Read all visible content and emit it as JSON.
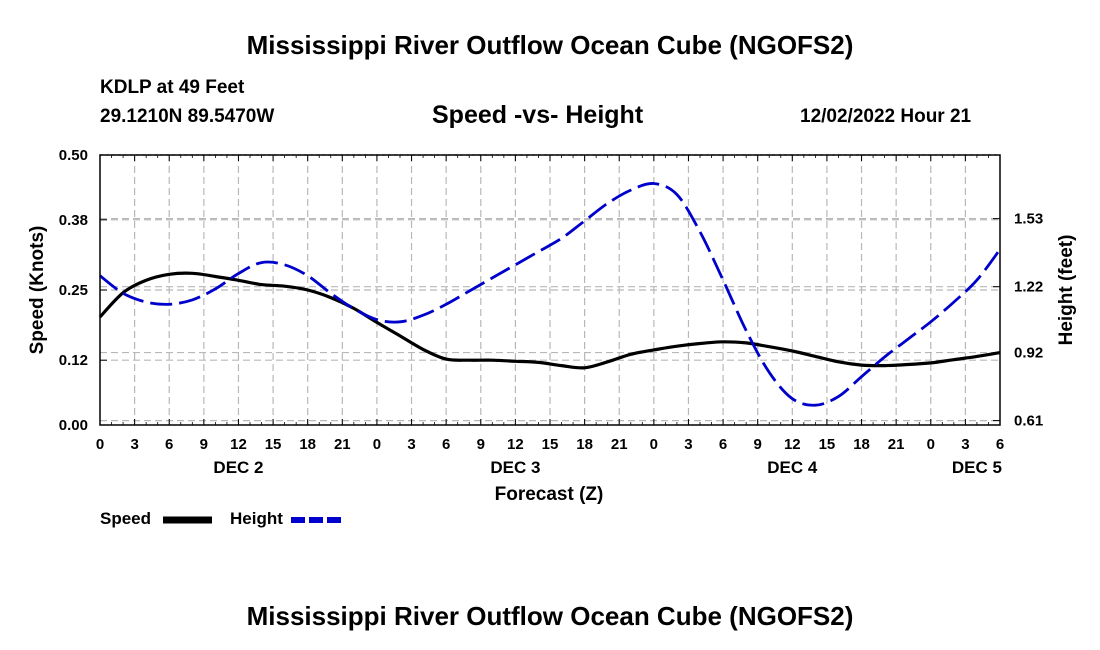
{
  "header": {
    "title": "Mississippi River Outflow Ocean Cube (NGOFS2)",
    "station": "KDLP at 49 Feet",
    "coords": "29.1210N  89.5470W",
    "subtitle": "Speed -vs- Height",
    "datetime": "12/02/2022 Hour 21"
  },
  "footer": {
    "title": "Mississippi River Outflow Ocean Cube (NGOFS2)"
  },
  "legend": {
    "speed_label": "Speed",
    "height_label": "Height"
  },
  "colors": {
    "speed": "#000000",
    "height": "#0000cc",
    "grid": "#b8b8b8"
  },
  "chart_data": {
    "type": "line",
    "title": "Speed -vs- Height",
    "xlabel": "Forecast (Z)",
    "ylabel": "Speed (Knots)",
    "y2label": "Height (feet)",
    "x_hours_range": [
      0,
      78
    ],
    "x_tick_labels": [
      "0",
      "3",
      "6",
      "9",
      "12",
      "15",
      "18",
      "21",
      "0",
      "3",
      "6",
      "9",
      "12",
      "15",
      "18",
      "21",
      "0",
      "3",
      "6",
      "9",
      "12",
      "15",
      "18",
      "21",
      "0",
      "3",
      "6"
    ],
    "date_labels": [
      {
        "label": "DEC 2",
        "hour": 12
      },
      {
        "label": "DEC 3",
        "hour": 36
      },
      {
        "label": "DEC 4",
        "hour": 60
      },
      {
        "label": "DEC 5",
        "hour": 76
      }
    ],
    "ylim": [
      0,
      0.5
    ],
    "y_ticks": [
      "0.00",
      "0.12",
      "0.25",
      "0.38",
      "0.50"
    ],
    "y2lim": [
      0.59,
      1.82
    ],
    "y2_ticks": [
      "0.61",
      "0.92",
      "1.22",
      "1.53"
    ],
    "series": [
      {
        "name": "Speed",
        "axis": "left",
        "style": "solid",
        "x": [
          0,
          2,
          4,
          6,
          8,
          10,
          12,
          14,
          16,
          18,
          20,
          22,
          24,
          26,
          28,
          30,
          32,
          34,
          36,
          38,
          40,
          42,
          44,
          46,
          48,
          50,
          52,
          54,
          56,
          58,
          60,
          62,
          64,
          66,
          68,
          70,
          72,
          74,
          76,
          78
        ],
        "values": [
          0.2,
          0.245,
          0.268,
          0.279,
          0.281,
          0.275,
          0.268,
          0.26,
          0.257,
          0.25,
          0.236,
          0.216,
          0.19,
          0.165,
          0.14,
          0.122,
          0.12,
          0.12,
          0.118,
          0.116,
          0.11,
          0.106,
          0.117,
          0.131,
          0.139,
          0.146,
          0.151,
          0.154,
          0.152,
          0.145,
          0.137,
          0.127,
          0.117,
          0.111,
          0.11,
          0.112,
          0.115,
          0.121,
          0.127,
          0.134
        ]
      },
      {
        "name": "Height",
        "axis": "right",
        "style": "dashed",
        "x": [
          0,
          2,
          4,
          6,
          8,
          10,
          12,
          14,
          16,
          18,
          20,
          22,
          24,
          26,
          28,
          30,
          32,
          34,
          36,
          38,
          40,
          42,
          44,
          46,
          48,
          50,
          52,
          54,
          56,
          58,
          60,
          62,
          64,
          66,
          68,
          70,
          72,
          74,
          76,
          78
        ],
        "values": [
          1.27,
          1.19,
          1.15,
          1.14,
          1.16,
          1.21,
          1.28,
          1.33,
          1.32,
          1.27,
          1.19,
          1.12,
          1.07,
          1.06,
          1.09,
          1.14,
          1.2,
          1.26,
          1.32,
          1.38,
          1.44,
          1.52,
          1.6,
          1.66,
          1.69,
          1.64,
          1.47,
          1.25,
          1.02,
          0.83,
          0.71,
          0.68,
          0.72,
          0.81,
          0.9,
          0.98,
          1.06,
          1.15,
          1.25,
          1.39
        ]
      }
    ]
  }
}
